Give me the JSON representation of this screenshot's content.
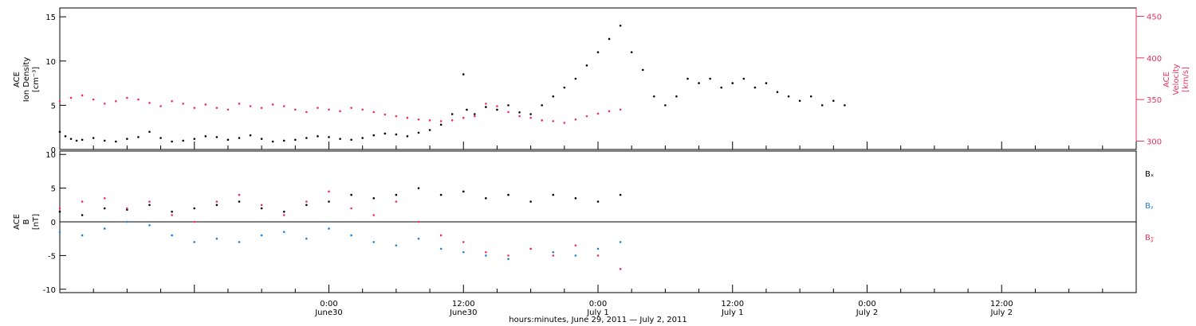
{
  "chart_data": [
    {
      "type": "scatter",
      "panel": "top",
      "ylabel_left": [
        "ACE",
        "Ion Density",
        "[cm⁻³]"
      ],
      "ylabel_right": [
        "ACE",
        "Velocity",
        "[km/s]"
      ],
      "ylim_left": [
        0,
        16
      ],
      "yticks_left": [
        0,
        5,
        10,
        15
      ],
      "ylim_right": [
        290,
        460
      ],
      "yticks_right": [
        300,
        350,
        400,
        450
      ],
      "colors": {
        "density": "#000000",
        "velocity": "#e8335f"
      },
      "series": [
        {
          "axis": "left",
          "color": "#000000",
          "x": [
            0,
            0.5,
            1,
            1.5,
            2,
            3,
            4,
            5,
            6,
            7,
            8,
            9,
            10,
            11,
            12,
            13,
            14,
            15,
            16,
            17,
            18,
            19,
            20,
            21,
            22,
            23,
            24,
            25,
            26,
            27,
            28,
            29,
            30,
            31,
            32,
            33,
            34,
            35,
            36,
            36.3,
            37,
            38,
            39,
            40,
            41,
            42,
            43,
            44,
            45,
            46,
            47,
            48,
            49,
            50,
            51,
            52,
            53,
            54,
            55,
            56,
            57,
            58,
            59,
            60,
            61,
            62,
            63,
            64,
            65,
            66,
            67,
            68,
            69,
            70
          ],
          "y": [
            2,
            1.5,
            1.2,
            1.0,
            1.1,
            1.3,
            1.0,
            0.9,
            1.2,
            1.4,
            2.0,
            1.3,
            0.9,
            1.0,
            1.2,
            1.5,
            1.4,
            1.1,
            1.3,
            1.6,
            1.2,
            0.9,
            1.0,
            1.1,
            1.3,
            1.5,
            1.4,
            1.2,
            1.1,
            1.3,
            1.6,
            1.8,
            1.7,
            1.5,
            1.9,
            2.2,
            2.8,
            4.0,
            8.5,
            4.5,
            4.0,
            4.8,
            4.5,
            5.0,
            4.2,
            4.0,
            5.0,
            6.0,
            7.0,
            8.0,
            9.5,
            11.0,
            12.5,
            14.0,
            11.0,
            9.0,
            6.0,
            5.0,
            6.0,
            8.0,
            7.5,
            8.0,
            7.0,
            7.5,
            8.0,
            7.0,
            7.5,
            6.5,
            6.0,
            5.5,
            6.0,
            5.0,
            5.5,
            5.0
          ]
        },
        {
          "axis": "right",
          "color": "#e8335f",
          "x": [
            0,
            1,
            2,
            3,
            4,
            5,
            6,
            7,
            8,
            9,
            10,
            11,
            12,
            13,
            14,
            15,
            16,
            17,
            18,
            19,
            20,
            21,
            22,
            23,
            24,
            25,
            26,
            27,
            28,
            29,
            30,
            31,
            32,
            33,
            34,
            35,
            36,
            37,
            38,
            39,
            40,
            41,
            42,
            43,
            44,
            45,
            46,
            47,
            48,
            49,
            50
          ],
          "y": [
            348,
            352,
            355,
            350,
            345,
            348,
            352,
            350,
            346,
            342,
            348,
            345,
            340,
            344,
            340,
            338,
            345,
            342,
            340,
            344,
            342,
            338,
            335,
            340,
            338,
            336,
            340,
            338,
            335,
            332,
            330,
            328,
            326,
            325,
            324,
            325,
            328,
            330,
            345,
            342,
            335,
            330,
            328,
            325,
            324,
            322,
            326,
            330,
            333,
            336,
            338
          ]
        }
      ]
    },
    {
      "type": "scatter",
      "panel": "bottom",
      "ylabel_left": [
        "ACE",
        "B",
        "[nT]"
      ],
      "ylim": [
        -10.5,
        10.5
      ],
      "yticks": [
        -10,
        -5,
        0,
        5,
        10
      ],
      "zero_line": true,
      "legend": [
        {
          "label": "Bₓ",
          "color": "#000000"
        },
        {
          "label": "Bᵧ",
          "color": "#1e82d2"
        },
        {
          "label": "B𝓏",
          "color": "#e8335f"
        }
      ],
      "series": [
        {
          "name": "Bx",
          "color": "#000000",
          "x": [
            0,
            2,
            4,
            6,
            8,
            10,
            12,
            14,
            16,
            18,
            20,
            22,
            24,
            26,
            28,
            30,
            32,
            34,
            36,
            38,
            40,
            42,
            44,
            46,
            48,
            50
          ],
          "y": [
            1.5,
            1.0,
            2.0,
            1.8,
            2.5,
            1.5,
            2.0,
            2.5,
            3.0,
            2.0,
            1.5,
            2.5,
            3.0,
            4.0,
            3.5,
            4.0,
            5.0,
            4.0,
            4.5,
            3.5,
            4.0,
            3.0,
            4.0,
            3.5,
            3.0,
            4.0
          ]
        },
        {
          "name": "By",
          "color": "#1e82d2",
          "x": [
            0,
            2,
            4,
            6,
            8,
            10,
            12,
            14,
            16,
            18,
            20,
            22,
            24,
            26,
            28,
            30,
            32,
            34,
            36,
            38,
            40,
            42,
            44,
            46,
            48,
            50
          ],
          "y": [
            -1.5,
            -2.0,
            -1.0,
            0,
            -0.5,
            -2.0,
            -3.0,
            -2.5,
            -3.0,
            -2.0,
            -1.5,
            -2.5,
            -1.0,
            -2.0,
            -3.0,
            -3.5,
            -2.5,
            -4.0,
            -4.5,
            -5.0,
            -5.5,
            -4.0,
            -4.5,
            -5.0,
            -4.0,
            -3.0
          ]
        },
        {
          "name": "Bz",
          "color": "#e8335f",
          "x": [
            0,
            2,
            4,
            6,
            8,
            10,
            12,
            14,
            16,
            18,
            20,
            22,
            24,
            26,
            28,
            30,
            32,
            34,
            36,
            38,
            40,
            42,
            44,
            46,
            48,
            50
          ],
          "y": [
            2.0,
            3.0,
            3.5,
            2.0,
            3.0,
            1.0,
            0,
            3.0,
            4.0,
            2.5,
            1.0,
            3.0,
            4.5,
            2.0,
            1.0,
            3.0,
            0,
            -2.0,
            -3.0,
            -4.5,
            -5.0,
            -4.0,
            -5.0,
            -3.5,
            -5.0,
            -7.0
          ]
        }
      ]
    }
  ],
  "x_axis": {
    "xlim_hours": [
      0,
      96
    ],
    "tick_labels": [
      {
        "t": 24,
        "time": "0:00",
        "date": "June30"
      },
      {
        "t": 36,
        "time": "12:00",
        "date": "June30"
      },
      {
        "t": 48,
        "time": "0:00",
        "date": "July 1"
      },
      {
        "t": 60,
        "time": "12:00",
        "date": "July 1"
      },
      {
        "t": 72,
        "time": "0:00",
        "date": "July 2"
      },
      {
        "t": 84,
        "time": "12:00",
        "date": "July 2"
      }
    ],
    "title": "hours:minutes, June 29, 2011 — July  2, 2011"
  }
}
